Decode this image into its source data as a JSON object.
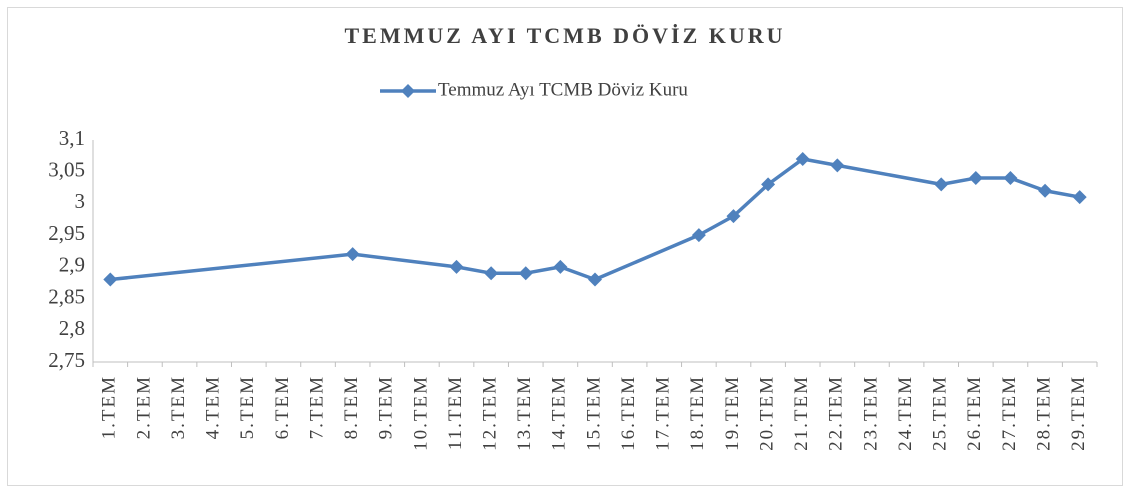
{
  "chart_data": {
    "type": "line",
    "title": "TEMMUZ AYI TCMB DÖVİZ KURU",
    "categories": [
      "1.TEM",
      "2.TEM",
      "3.TEM",
      "4.TEM",
      "5.TEM",
      "6.TEM",
      "7.TEM",
      "8.TEM",
      "9.TEM",
      "10.TEM",
      "11.TEM",
      "12.TEM",
      "13.TEM",
      "14.TEM",
      "15.TEM",
      "16.TEM",
      "17.TEM",
      "18.TEM",
      "19.TEM",
      "20.TEM",
      "21.TEM",
      "22.TEM",
      "23.TEM",
      "24.TEM",
      "25.TEM",
      "26.TEM",
      "27.TEM",
      "28.TEM",
      "29.TEM"
    ],
    "series": [
      {
        "name": "Temmuz Ayı TCMB Döviz Kuru",
        "color": "#4f81bd",
        "values": [
          2.88,
          null,
          null,
          null,
          null,
          null,
          null,
          2.92,
          null,
          null,
          2.9,
          2.89,
          2.89,
          2.9,
          2.88,
          null,
          null,
          2.95,
          2.98,
          3.03,
          3.07,
          3.06,
          null,
          null,
          3.03,
          3.04,
          3.04,
          3.02,
          3.01
        ]
      }
    ],
    "span_gaps": true,
    "ylim": [
      2.75,
      3.1
    ],
    "yticks": [
      {
        "value": 2.75,
        "label": "2,75"
      },
      {
        "value": 2.8,
        "label": "2,8"
      },
      {
        "value": 2.85,
        "label": "2,85"
      },
      {
        "value": 2.9,
        "label": "2,9"
      },
      {
        "value": 2.95,
        "label": "2,95"
      },
      3,
      {
        "value": 3.05,
        "label": "3,05"
      },
      {
        "value": 3.1,
        "label": "3,1"
      }
    ],
    "grid": false,
    "legend": "top"
  }
}
